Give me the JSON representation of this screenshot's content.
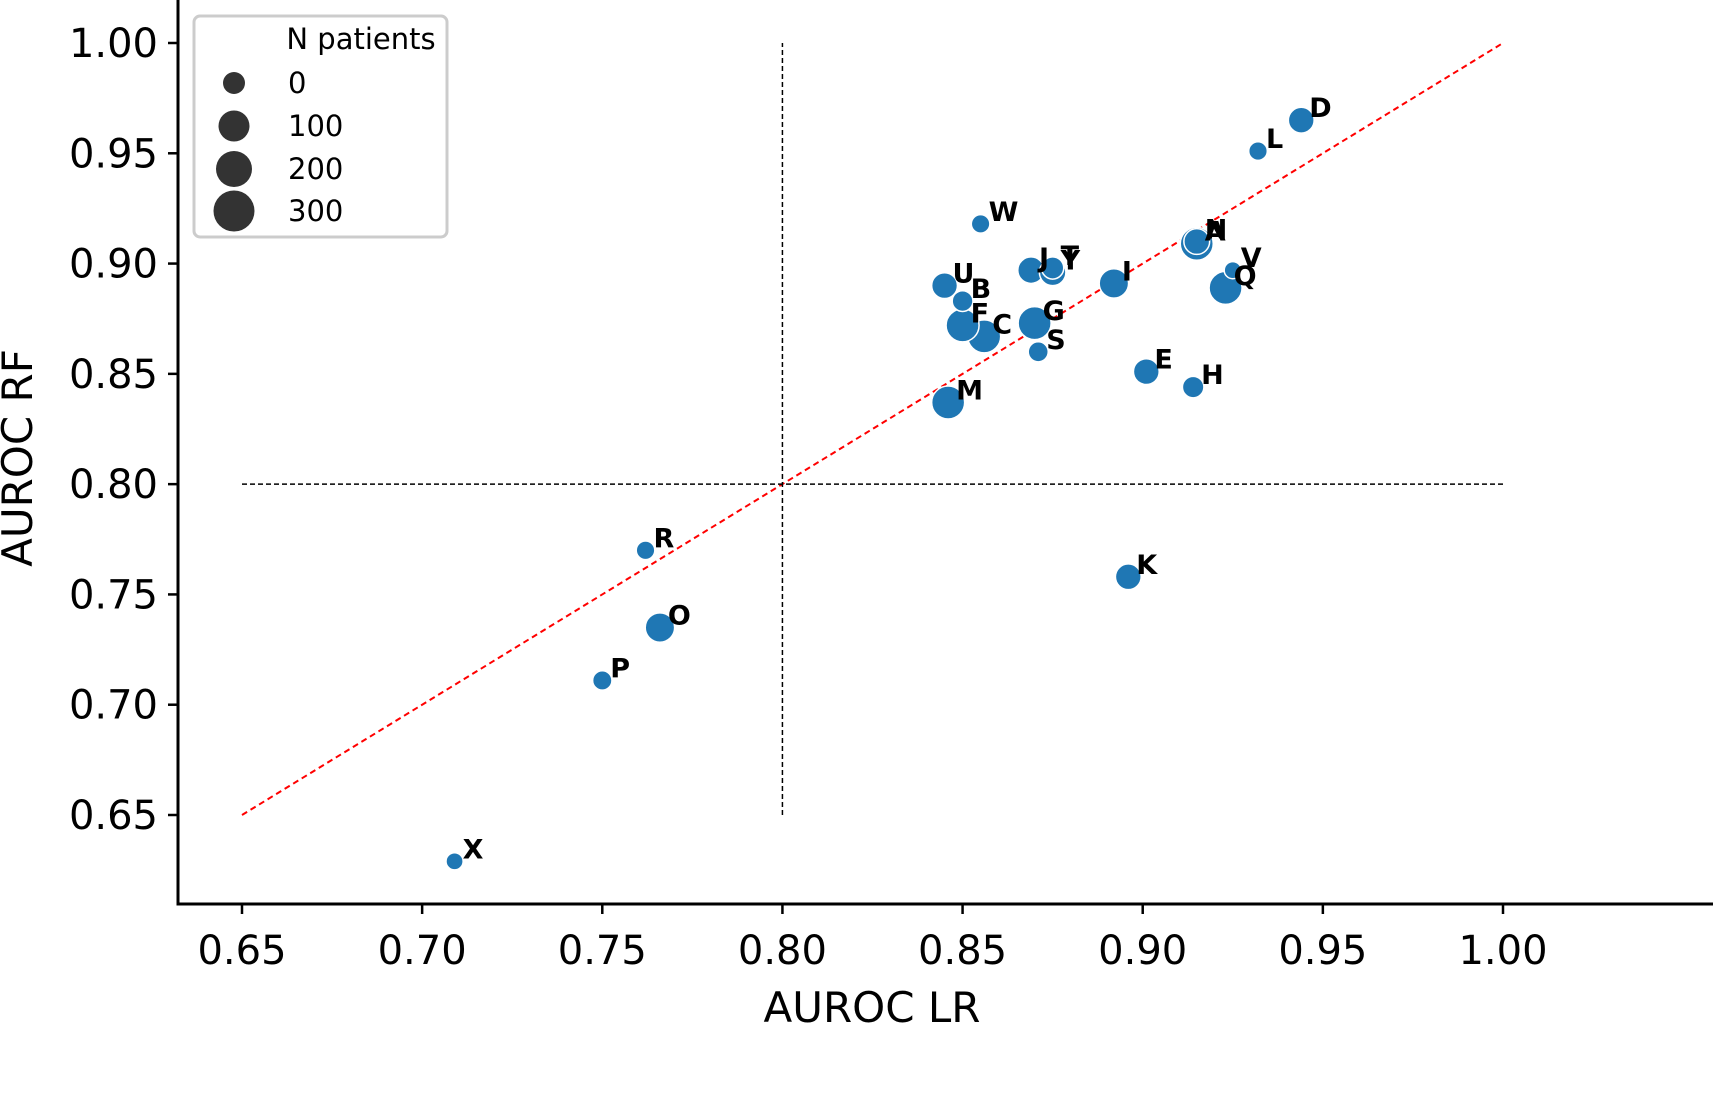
{
  "chart_data": {
    "type": "scatter",
    "title": "",
    "xlabel": "AUROC LR",
    "ylabel": "AUROC RF",
    "xlim": [
      0.632,
      1.018
    ],
    "ylim": [
      0.609,
      1.019
    ],
    "x_ticks": [
      "0.65",
      "0.70",
      "0.75",
      "0.80",
      "0.85",
      "0.90",
      "0.95",
      "1.00"
    ],
    "y_ticks": [
      "0.65",
      "0.70",
      "0.75",
      "0.80",
      "0.85",
      "0.90",
      "0.95",
      "1.00"
    ],
    "grid": false,
    "point_color": "#1f77b4",
    "size_variable": "N patients",
    "legend": {
      "title": "N patients",
      "placement": "top-left",
      "entries": [
        {
          "label": "0",
          "value": 0
        },
        {
          "label": "100",
          "value": 100
        },
        {
          "label": "200",
          "value": 200
        },
        {
          "label": "300",
          "value": 300
        }
      ]
    },
    "reference_lines": [
      {
        "type": "diagonal",
        "from": [
          0.65,
          0.65
        ],
        "to": [
          1.0,
          1.0
        ],
        "color": "#ff0000",
        "style": "dashed"
      },
      {
        "type": "vertical",
        "x": 0.8,
        "y_range": [
          0.65,
          1.0
        ],
        "color": "#000000",
        "style": "dashed"
      },
      {
        "type": "horizontal",
        "y": 0.8,
        "x_range": [
          0.65,
          1.0
        ],
        "color": "#000000",
        "style": "dashed"
      }
    ],
    "points": [
      {
        "label": "A",
        "x": 0.915,
        "y": 0.909,
        "n": 250
      },
      {
        "label": "N",
        "x": 0.915,
        "y": 0.91,
        "n": 150
      },
      {
        "label": "B",
        "x": 0.85,
        "y": 0.883,
        "n": 80
      },
      {
        "label": "C",
        "x": 0.856,
        "y": 0.867,
        "n": 250
      },
      {
        "label": "D",
        "x": 0.944,
        "y": 0.965,
        "n": 150
      },
      {
        "label": "E",
        "x": 0.901,
        "y": 0.851,
        "n": 150
      },
      {
        "label": "F",
        "x": 0.85,
        "y": 0.872,
        "n": 250
      },
      {
        "label": "G",
        "x": 0.87,
        "y": 0.873,
        "n": 250
      },
      {
        "label": "H",
        "x": 0.914,
        "y": 0.844,
        "n": 90
      },
      {
        "label": "I",
        "x": 0.892,
        "y": 0.891,
        "n": 200
      },
      {
        "label": "J",
        "x": 0.869,
        "y": 0.897,
        "n": 160
      },
      {
        "label": "T",
        "x": 0.875,
        "y": 0.898,
        "n": 100
      },
      {
        "label": "Y",
        "x": 0.875,
        "y": 0.896,
        "n": 160
      },
      {
        "label": "K",
        "x": 0.896,
        "y": 0.758,
        "n": 150
      },
      {
        "label": "L",
        "x": 0.932,
        "y": 0.951,
        "n": 50
      },
      {
        "label": "M",
        "x": 0.846,
        "y": 0.837,
        "n": 250
      },
      {
        "label": "O",
        "x": 0.766,
        "y": 0.735,
        "n": 200
      },
      {
        "label": "P",
        "x": 0.75,
        "y": 0.711,
        "n": 60
      },
      {
        "label": "Q",
        "x": 0.923,
        "y": 0.889,
        "n": 250
      },
      {
        "label": "R",
        "x": 0.762,
        "y": 0.77,
        "n": 50
      },
      {
        "label": "S",
        "x": 0.871,
        "y": 0.86,
        "n": 70
      },
      {
        "label": "U",
        "x": 0.845,
        "y": 0.89,
        "n": 150
      },
      {
        "label": "V",
        "x": 0.925,
        "y": 0.897,
        "n": 30
      },
      {
        "label": "W",
        "x": 0.855,
        "y": 0.918,
        "n": 50
      },
      {
        "label": "X",
        "x": 0.709,
        "y": 0.629,
        "n": 30
      }
    ]
  }
}
